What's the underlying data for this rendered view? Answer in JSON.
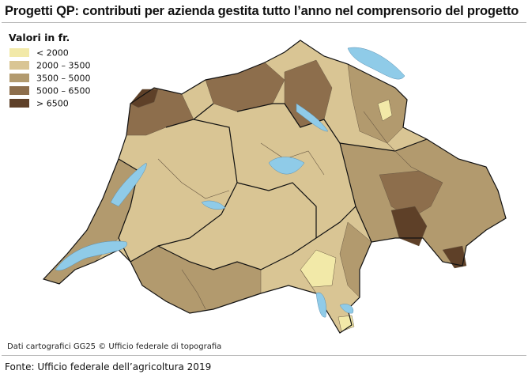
{
  "title": "Progetti QP: contributi per azienda gestita tutto l’anno nel comprensorio del progetto",
  "legend": {
    "title": "Valori in fr.",
    "items": [
      {
        "label": "< 2000",
        "color": "#f2e9a8"
      },
      {
        "label": "2000 – 3500",
        "color": "#d9c594"
      },
      {
        "label": "3500 – 5000",
        "color": "#b29a6e"
      },
      {
        "label": "5000 – 6500",
        "color": "#8d6e4c"
      },
      {
        "label": "> 6500",
        "color": "#5e4028"
      }
    ]
  },
  "credit": "Dati cartografici GG25 © Ufficio federale di topografia",
  "source": "Fonte: Ufficio federale dell’agricoltura 2019"
}
